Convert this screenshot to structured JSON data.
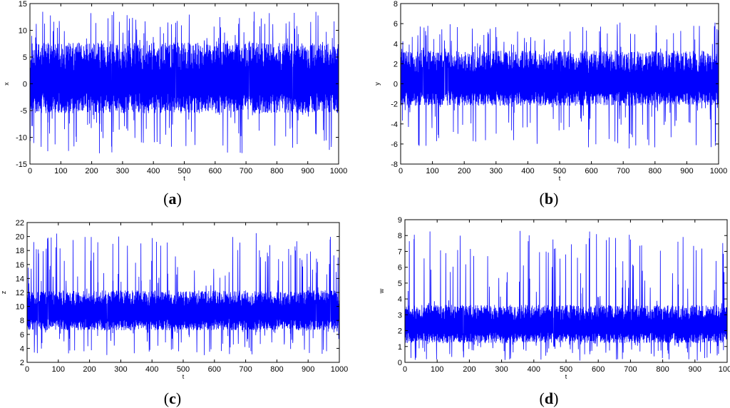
{
  "chart_data": [
    {
      "type": "line",
      "panel_label": "a",
      "xlabel": "t",
      "ylabel": "x",
      "xlim": [
        0,
        1000
      ],
      "ylim": [
        -15,
        15
      ],
      "xticks": [
        0,
        100,
        200,
        300,
        400,
        500,
        600,
        700,
        800,
        900,
        1000
      ],
      "yticks": [
        -15,
        -10,
        -5,
        0,
        5,
        10,
        15
      ],
      "color": "#0000ff",
      "signal": {
        "mean": 0,
        "core_low": -5,
        "core_high": 7,
        "peak_low": -13,
        "peak_high": 13.5,
        "start_value": -12
      },
      "series": [
        {
          "values_summary": "chaotic oscillation around 0, dense band approx -5 to 7, spikes to approx 13.5 and -13"
        }
      ]
    },
    {
      "type": "line",
      "panel_label": "b",
      "xlabel": "t",
      "ylabel": "y",
      "xlim": [
        0,
        1000
      ],
      "ylim": [
        -8,
        8
      ],
      "xticks": [
        0,
        100,
        200,
        300,
        400,
        500,
        600,
        700,
        800,
        900,
        1000
      ],
      "yticks": [
        -8,
        -6,
        -4,
        -2,
        0,
        2,
        4,
        6,
        8
      ],
      "color": "#0000ff",
      "signal": {
        "mean": 0,
        "core_low": -2,
        "core_high": 3,
        "peak_low": -6.6,
        "peak_high": 6.2,
        "start_value": 5.8
      },
      "series": [
        {
          "values_summary": "chaotic oscillation around 0, dense band approx -2 to 3, spikes to approx 6.2 and -6.6"
        }
      ]
    },
    {
      "type": "line",
      "panel_label": "c",
      "xlabel": "t",
      "ylabel": "z",
      "xlim": [
        0,
        1000
      ],
      "ylim": [
        2,
        22
      ],
      "xticks": [
        0,
        100,
        200,
        300,
        400,
        500,
        600,
        700,
        800,
        900,
        1000
      ],
      "yticks": [
        2,
        4,
        6,
        8,
        10,
        12,
        14,
        16,
        18,
        20,
        22
      ],
      "color": "#0000ff",
      "signal": {
        "mean": 9,
        "core_low": 6.8,
        "core_high": 12,
        "peak_low": 3,
        "peak_high": 20.5,
        "start_value": 18
      },
      "series": [
        {
          "values_summary": "chaotic oscillation around 9, dense band approx 6.8 to 12, spikes to approx 20.5 and 3"
        }
      ]
    },
    {
      "type": "line",
      "panel_label": "d",
      "xlabel": "t",
      "ylabel": "w",
      "xlim": [
        0,
        1000
      ],
      "ylim": [
        0,
        9
      ],
      "xticks": [
        0,
        100,
        200,
        300,
        400,
        500,
        600,
        700,
        800,
        900,
        1000
      ],
      "yticks": [
        0,
        1,
        2,
        3,
        4,
        5,
        6,
        7,
        8,
        9
      ],
      "color": "#0000ff",
      "signal": {
        "mean": 2.2,
        "core_low": 1.3,
        "core_high": 3.5,
        "peak_low": 0.1,
        "peak_high": 8.3,
        "start_value": 7.2
      },
      "series": [
        {
          "values_summary": "chaotic oscillation around 2.2, dense band approx 1.3 to 3.5, spikes to approx 8.3 and near 0"
        }
      ]
    }
  ]
}
